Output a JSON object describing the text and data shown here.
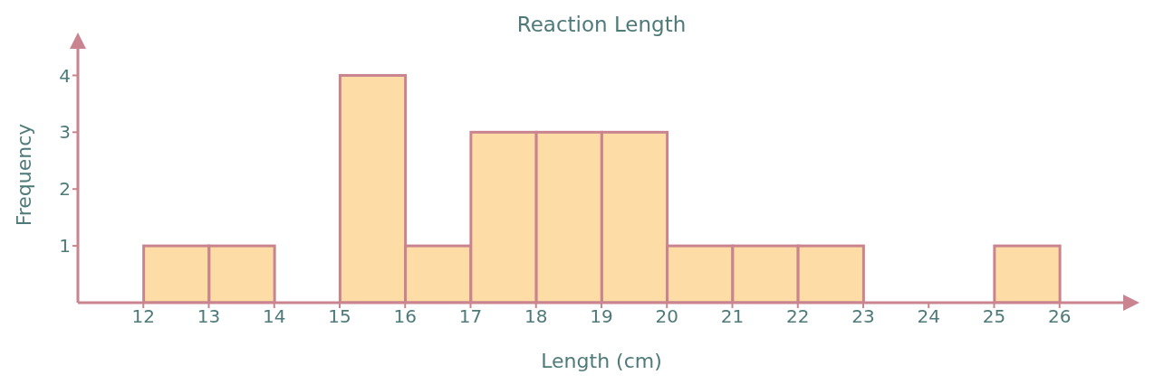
{
  "chart_data": {
    "type": "histogram",
    "title": "Reaction Length",
    "xlabel": "Length (cm)",
    "ylabel": "Frequency",
    "bins": [
      12,
      13,
      14,
      15,
      16,
      17,
      18,
      19,
      20,
      21,
      22,
      23,
      24,
      25,
      26
    ],
    "values": [
      1,
      1,
      0,
      4,
      1,
      3,
      3,
      3,
      1,
      1,
      1,
      0,
      0,
      1
    ],
    "color": "#fddca5",
    "xlim": [
      11,
      27
    ],
    "xticks": [
      12,
      13,
      14,
      15,
      16,
      17,
      18,
      19,
      20,
      21,
      22,
      23,
      24,
      25,
      26
    ],
    "ylim": [
      0,
      4.5
    ],
    "yticks": [
      1,
      2,
      3,
      4
    ],
    "grid": false
  }
}
